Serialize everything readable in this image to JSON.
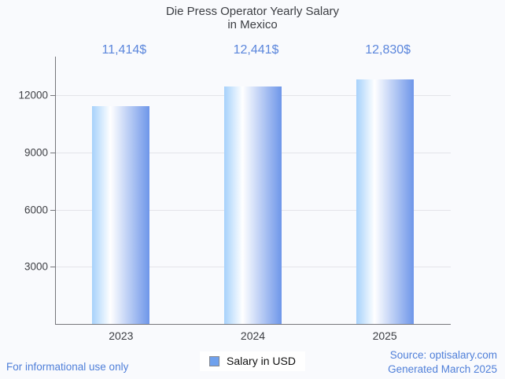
{
  "colors": {
    "background": "#f9fafd",
    "title_text": "#3b3d42",
    "value_label_text": "#5b86dc",
    "axis_line": "#76767b",
    "gridline": "#e4e4e9",
    "tick_label_text": "#3f4045",
    "x_label_text": "#3b3d42",
    "footer_text": "#4f7fd9",
    "legend_swatch_fill": "#6fa1ed",
    "legend_swatch_border": "#85878c"
  },
  "title": {
    "line1": "Die Press Operator Yearly Salary",
    "line2": "in Mexico"
  },
  "chart_data": {
    "type": "bar",
    "title": "Die Press Operator Yearly Salary in Mexico",
    "categories": [
      "2023",
      "2024",
      "2025"
    ],
    "series": [
      {
        "name": "Salary in USD",
        "values": [
          11414,
          12441,
          12830
        ]
      }
    ],
    "value_labels": [
      "11,414$",
      "12,441$",
      "12,830$"
    ],
    "xlabel": "",
    "ylabel": "",
    "ylim": [
      0,
      14000
    ],
    "yticks": [
      3000,
      6000,
      9000,
      12000
    ],
    "ytick_labels": [
      "3000",
      "6000",
      "9000",
      "12000"
    ],
    "grid": true,
    "legend_position": "bottom-center",
    "bar_gradient": [
      "#a6d1fb",
      "#ffffff",
      "#6e96e9"
    ],
    "bar_gradient_stops": [
      0,
      32,
      100
    ]
  },
  "legend": {
    "label": "Salary in USD"
  },
  "footer": {
    "disclaimer": "For informational use only",
    "source": "Source: optisalary.com",
    "generated": "Generated March 2025"
  }
}
